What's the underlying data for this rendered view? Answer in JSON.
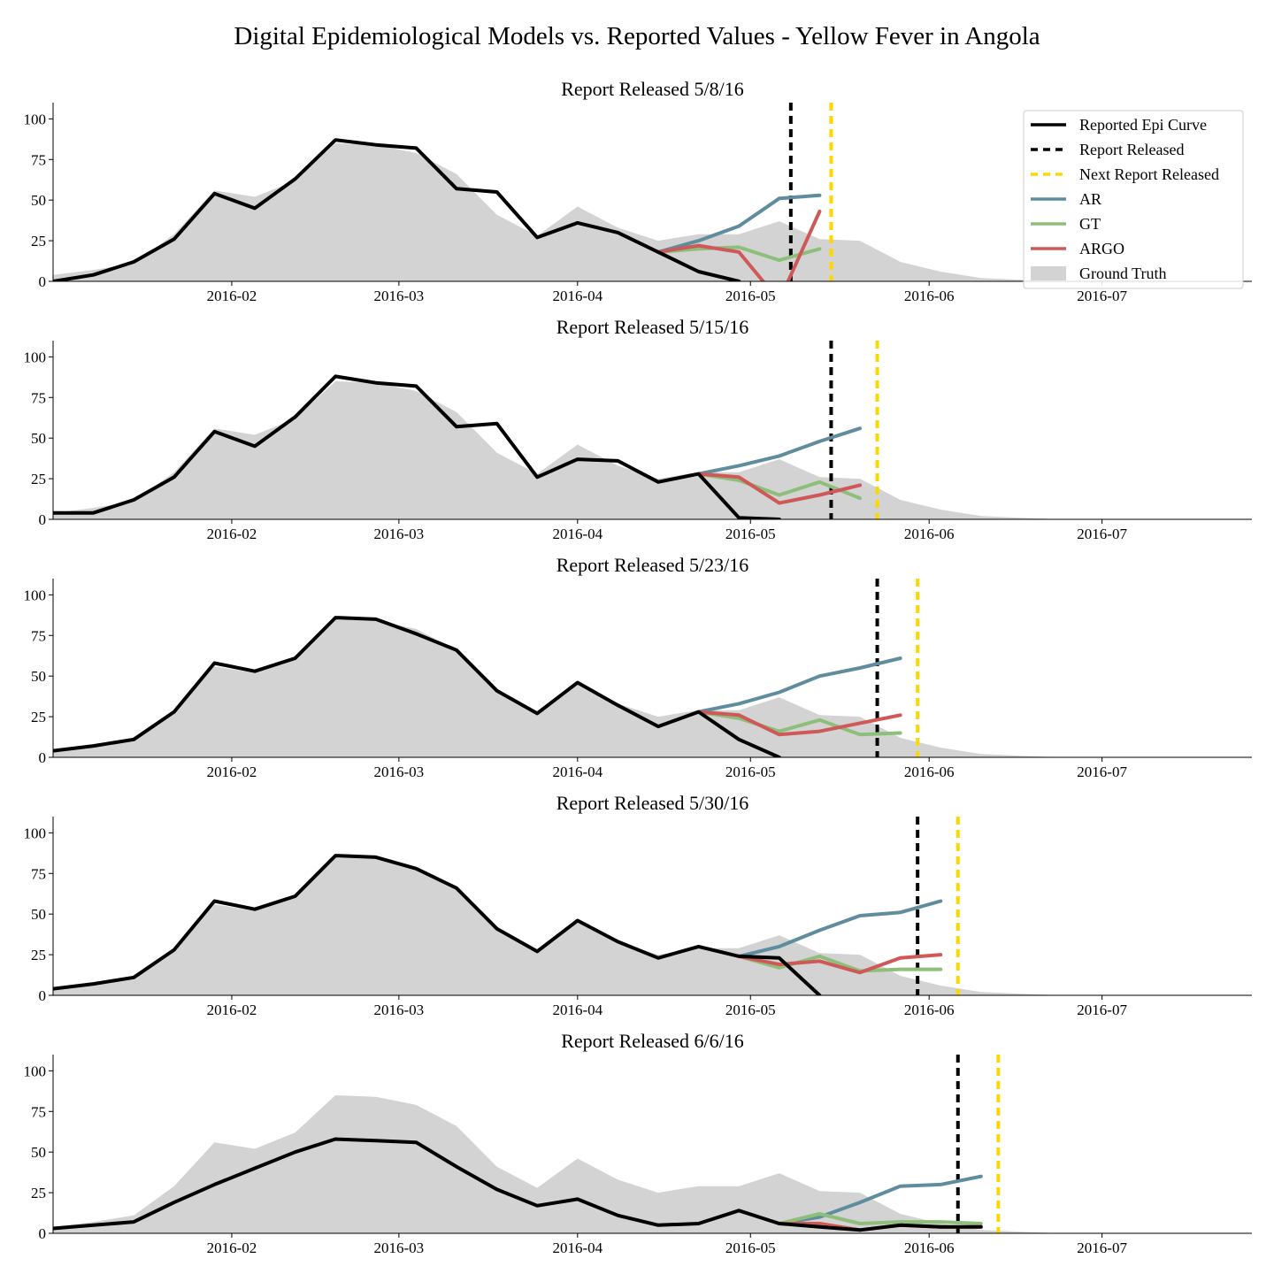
{
  "title": "Digital Epidemiological Models vs. Reported Values - Yellow Fever in Angola",
  "legend": {
    "entries": [
      "Reported Epi Curve",
      "Report Released",
      "Next Report Released",
      "AR",
      "GT",
      "ARGO",
      "Ground Truth"
    ],
    "placement": "top-right of first panel"
  },
  "colors": {
    "epi": "#000000",
    "report": "#000000",
    "next_report": "#FFD700",
    "ar": "#5F8D9E",
    "gt": "#8DBF7A",
    "argo": "#CF5858",
    "ground_truth": "#D3D3D3"
  },
  "chart_data": {
    "type": "line",
    "xlabel": "",
    "ylabel": "",
    "x_range": [
      "2016-01-01",
      "2016-07-27"
    ],
    "ylim": [
      0,
      110
    ],
    "yticks": [
      0,
      25,
      50,
      75,
      100
    ],
    "xtick_labels": [
      "2016-02",
      "2016-03",
      "2016-04",
      "2016-05",
      "2016-06",
      "2016-07"
    ],
    "xtick_dates": [
      "2016-02-01",
      "2016-03-01",
      "2016-04-01",
      "2016-05-01",
      "2016-06-01",
      "2016-07-01"
    ],
    "ground_truth": {
      "x": [
        "2016-01-01",
        "2016-01-08",
        "2016-01-15",
        "2016-01-22",
        "2016-01-29",
        "2016-02-05",
        "2016-02-12",
        "2016-02-19",
        "2016-02-26",
        "2016-03-04",
        "2016-03-11",
        "2016-03-18",
        "2016-03-25",
        "2016-04-01",
        "2016-04-08",
        "2016-04-15",
        "2016-04-22",
        "2016-04-29",
        "2016-05-06",
        "2016-05-13",
        "2016-05-20",
        "2016-05-27",
        "2016-06-03",
        "2016-06-10",
        "2016-06-17",
        "2016-06-24",
        "2016-07-01"
      ],
      "values": [
        4,
        7,
        11,
        29,
        56,
        52,
        62,
        85,
        84,
        79,
        66,
        41,
        28,
        46,
        33,
        25,
        29,
        29,
        37,
        26,
        25,
        12,
        6,
        2,
        1,
        0,
        0
      ]
    },
    "panels": [
      {
        "title": "Report Released 5/8/16",
        "report_released": "2016-05-08",
        "next_report_released": "2016-05-15",
        "epi": {
          "x": [
            "2016-01-01",
            "2016-01-08",
            "2016-01-15",
            "2016-01-22",
            "2016-01-29",
            "2016-02-05",
            "2016-02-12",
            "2016-02-19",
            "2016-02-26",
            "2016-03-04",
            "2016-03-11",
            "2016-03-18",
            "2016-03-25",
            "2016-04-01",
            "2016-04-08",
            "2016-04-15",
            "2016-04-22",
            "2016-04-29"
          ],
          "values": [
            0,
            4,
            12,
            26,
            54,
            45,
            63,
            87,
            84,
            82,
            57,
            55,
            27,
            36,
            30,
            18,
            6,
            0
          ]
        },
        "ar": {
          "x": [
            "2016-04-15",
            "2016-04-22",
            "2016-04-29",
            "2016-05-06",
            "2016-05-13"
          ],
          "values": [
            18,
            25,
            34,
            51,
            53
          ]
        },
        "gt": {
          "x": [
            "2016-04-15",
            "2016-04-22",
            "2016-04-29",
            "2016-05-06",
            "2016-05-13"
          ],
          "values": [
            18,
            20,
            21,
            13,
            20
          ]
        },
        "argo": {
          "x": [
            "2016-04-15",
            "2016-04-22",
            "2016-04-29",
            "2016-05-06",
            "2016-05-13"
          ],
          "values": [
            18,
            22,
            18,
            -12,
            43
          ]
        }
      },
      {
        "title": "Report Released 5/15/16",
        "report_released": "2016-05-15",
        "next_report_released": "2016-05-23",
        "epi": {
          "x": [
            "2016-01-01",
            "2016-01-08",
            "2016-01-15",
            "2016-01-22",
            "2016-01-29",
            "2016-02-05",
            "2016-02-12",
            "2016-02-19",
            "2016-02-26",
            "2016-03-04",
            "2016-03-11",
            "2016-03-18",
            "2016-03-25",
            "2016-04-01",
            "2016-04-08",
            "2016-04-15",
            "2016-04-22",
            "2016-04-29",
            "2016-05-06"
          ],
          "values": [
            4,
            4,
            12,
            26,
            54,
            45,
            63,
            88,
            84,
            82,
            57,
            59,
            26,
            37,
            36,
            23,
            28,
            1,
            0
          ]
        },
        "ar": {
          "x": [
            "2016-04-22",
            "2016-04-29",
            "2016-05-06",
            "2016-05-13",
            "2016-05-20"
          ],
          "values": [
            28,
            33,
            39,
            48,
            56
          ]
        },
        "gt": {
          "x": [
            "2016-04-22",
            "2016-04-29",
            "2016-05-06",
            "2016-05-13",
            "2016-05-20"
          ],
          "values": [
            28,
            24,
            15,
            23,
            13
          ]
        },
        "argo": {
          "x": [
            "2016-04-22",
            "2016-04-29",
            "2016-05-06",
            "2016-05-13",
            "2016-05-20"
          ],
          "values": [
            28,
            26,
            10,
            15,
            21
          ]
        }
      },
      {
        "title": "Report Released 5/23/16",
        "report_released": "2016-05-23",
        "next_report_released": "2016-05-30",
        "epi": {
          "x": [
            "2016-01-01",
            "2016-01-08",
            "2016-01-15",
            "2016-01-22",
            "2016-01-29",
            "2016-02-05",
            "2016-02-12",
            "2016-02-19",
            "2016-02-26",
            "2016-03-04",
            "2016-03-11",
            "2016-03-18",
            "2016-03-25",
            "2016-04-01",
            "2016-04-08",
            "2016-04-15",
            "2016-04-22",
            "2016-04-29",
            "2016-05-06"
          ],
          "values": [
            4,
            7,
            11,
            28,
            58,
            53,
            61,
            86,
            85,
            76,
            66,
            41,
            27,
            46,
            32,
            19,
            28,
            11,
            0
          ]
        },
        "ar": {
          "x": [
            "2016-04-22",
            "2016-04-29",
            "2016-05-06",
            "2016-05-13",
            "2016-05-20",
            "2016-05-27"
          ],
          "values": [
            28,
            33,
            40,
            50,
            55,
            61
          ]
        },
        "gt": {
          "x": [
            "2016-04-22",
            "2016-04-29",
            "2016-05-06",
            "2016-05-13",
            "2016-05-20",
            "2016-05-27"
          ],
          "values": [
            28,
            24,
            16,
            23,
            14,
            15
          ]
        },
        "argo": {
          "x": [
            "2016-04-22",
            "2016-04-29",
            "2016-05-06",
            "2016-05-13",
            "2016-05-20",
            "2016-05-27"
          ],
          "values": [
            28,
            26,
            14,
            16,
            21,
            26
          ]
        }
      },
      {
        "title": "Report Released 5/30/16",
        "report_released": "2016-05-30",
        "next_report_released": "2016-06-06",
        "epi": {
          "x": [
            "2016-01-01",
            "2016-01-08",
            "2016-01-15",
            "2016-01-22",
            "2016-01-29",
            "2016-02-05",
            "2016-02-12",
            "2016-02-19",
            "2016-02-26",
            "2016-03-04",
            "2016-03-11",
            "2016-03-18",
            "2016-03-25",
            "2016-04-01",
            "2016-04-08",
            "2016-04-15",
            "2016-04-22",
            "2016-04-29",
            "2016-05-06",
            "2016-05-13"
          ],
          "values": [
            4,
            7,
            11,
            28,
            58,
            53,
            61,
            86,
            85,
            78,
            66,
            41,
            27,
            46,
            33,
            23,
            30,
            24,
            23,
            0
          ]
        },
        "ar": {
          "x": [
            "2016-04-29",
            "2016-05-06",
            "2016-05-13",
            "2016-05-20",
            "2016-05-27",
            "2016-06-03"
          ],
          "values": [
            24,
            30,
            40,
            49,
            51,
            58
          ]
        },
        "gt": {
          "x": [
            "2016-04-29",
            "2016-05-06",
            "2016-05-13",
            "2016-05-20",
            "2016-05-27",
            "2016-06-03"
          ],
          "values": [
            24,
            17,
            24,
            15,
            16,
            16
          ]
        },
        "argo": {
          "x": [
            "2016-04-29",
            "2016-05-06",
            "2016-05-13",
            "2016-05-20",
            "2016-05-27",
            "2016-06-03"
          ],
          "values": [
            24,
            19,
            21,
            14,
            23,
            25
          ]
        }
      },
      {
        "title": "Report Released 6/6/16",
        "report_released": "2016-06-06",
        "next_report_released": "2016-06-13",
        "epi": {
          "x": [
            "2016-01-01",
            "2016-01-08",
            "2016-01-15",
            "2016-01-22",
            "2016-01-29",
            "2016-02-05",
            "2016-02-12",
            "2016-02-19",
            "2016-02-26",
            "2016-03-04",
            "2016-03-11",
            "2016-03-18",
            "2016-03-25",
            "2016-04-01",
            "2016-04-08",
            "2016-04-15",
            "2016-04-22",
            "2016-04-29",
            "2016-05-06",
            "2016-05-13",
            "2016-05-20",
            "2016-05-27",
            "2016-06-03",
            "2016-06-10"
          ],
          "values": [
            3,
            5,
            7,
            19,
            30,
            40,
            50,
            58,
            57,
            56,
            41,
            27,
            17,
            21,
            11,
            5,
            6,
            14,
            6,
            4,
            2,
            5,
            4,
            4
          ]
        },
        "ar": {
          "x": [
            "2016-05-06",
            "2016-05-13",
            "2016-05-20",
            "2016-05-27",
            "2016-06-03",
            "2016-06-10"
          ],
          "values": [
            6,
            10,
            19,
            29,
            30,
            35
          ]
        },
        "gt": {
          "x": [
            "2016-05-06",
            "2016-05-13",
            "2016-05-20",
            "2016-05-27",
            "2016-06-03",
            "2016-06-10"
          ],
          "values": [
            6,
            12,
            6,
            7,
            7,
            6
          ]
        },
        "argo": {
          "x": [
            "2016-05-06",
            "2016-05-13",
            "2016-05-20",
            "2016-05-27",
            "2016-06-03",
            "2016-06-10"
          ],
          "values": [
            6,
            6,
            2,
            5,
            4,
            4
          ]
        }
      }
    ]
  }
}
